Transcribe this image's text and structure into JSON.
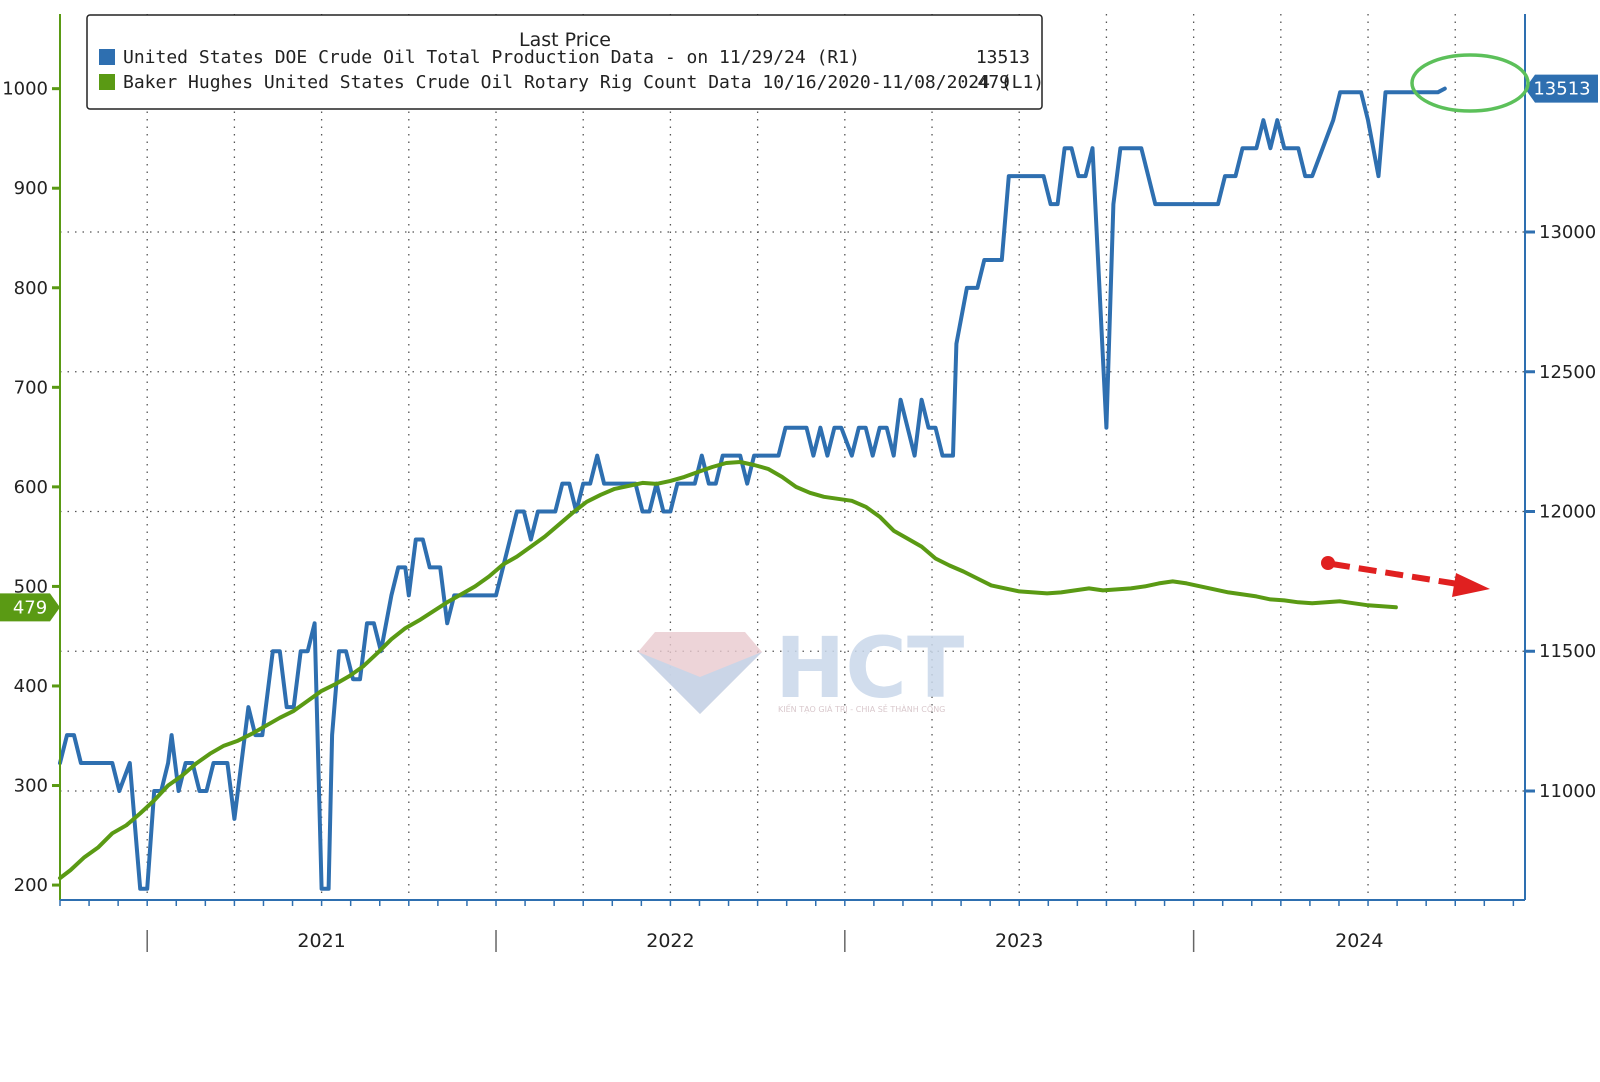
{
  "chart_data": {
    "type": "line",
    "legend": {
      "title": "Last Price",
      "position": "top-left",
      "entries": [
        {
          "name": "United States DOE Crude Oil Total Production Data -  on 11/29/24  (R1)",
          "last_value": "13513",
          "color": "#2e6fb0",
          "axis": "right"
        },
        {
          "name": "Baker Hughes United States Crude Oil Rotary Rig Count Data 10/16/2020-11/08/2024  (L1)",
          "last_value": "479",
          "color": "#5a9a14",
          "axis": "left"
        }
      ]
    },
    "x_axis": {
      "year_labels": [
        "2021",
        "2022",
        "2023",
        "2024"
      ],
      "range": [
        2020.75,
        2024.95
      ]
    },
    "left_axis": {
      "ticks": [
        "200",
        "300",
        "400",
        "500",
        "600",
        "700",
        "800",
        "900",
        "1000"
      ],
      "range": [
        185,
        1075
      ],
      "last_value_badge": "479"
    },
    "right_axis": {
      "ticks": [
        "11000",
        "11500",
        "12000",
        "12500",
        "13000"
      ],
      "range": [
        10610,
        13780
      ],
      "last_value_badge": "13513"
    },
    "series": [
      {
        "name": "United States DOE Crude Oil Total Production",
        "axis": "right",
        "color": "#2e6fb0",
        "points": [
          [
            2020.75,
            11100
          ],
          [
            2020.77,
            11200
          ],
          [
            2020.79,
            11200
          ],
          [
            2020.81,
            11100
          ],
          [
            2020.85,
            11100
          ],
          [
            2020.9,
            11100
          ],
          [
            2020.92,
            11000
          ],
          [
            2020.95,
            11100
          ],
          [
            2020.97,
            10800
          ],
          [
            2020.98,
            10650
          ],
          [
            2021.0,
            10650
          ],
          [
            2021.02,
            11000
          ],
          [
            2021.04,
            11000
          ],
          [
            2021.06,
            11100
          ],
          [
            2021.07,
            11200
          ],
          [
            2021.09,
            11000
          ],
          [
            2021.11,
            11100
          ],
          [
            2021.13,
            11100
          ],
          [
            2021.15,
            11000
          ],
          [
            2021.17,
            11000
          ],
          [
            2021.19,
            11100
          ],
          [
            2021.23,
            11100
          ],
          [
            2021.25,
            10900
          ],
          [
            2021.27,
            11100
          ],
          [
            2021.29,
            11300
          ],
          [
            2021.31,
            11200
          ],
          [
            2021.33,
            11200
          ],
          [
            2021.36,
            11500
          ],
          [
            2021.38,
            11500
          ],
          [
            2021.4,
            11300
          ],
          [
            2021.42,
            11300
          ],
          [
            2021.44,
            11500
          ],
          [
            2021.46,
            11500
          ],
          [
            2021.48,
            11600
          ],
          [
            2021.5,
            10650
          ],
          [
            2021.52,
            10650
          ],
          [
            2021.53,
            11200
          ],
          [
            2021.55,
            11500
          ],
          [
            2021.57,
            11500
          ],
          [
            2021.59,
            11400
          ],
          [
            2021.61,
            11400
          ],
          [
            2021.63,
            11600
          ],
          [
            2021.65,
            11600
          ],
          [
            2021.67,
            11500
          ],
          [
            2021.7,
            11700
          ],
          [
            2021.72,
            11800
          ],
          [
            2021.74,
            11800
          ],
          [
            2021.75,
            11700
          ],
          [
            2021.77,
            11900
          ],
          [
            2021.79,
            11900
          ],
          [
            2021.81,
            11800
          ],
          [
            2021.84,
            11800
          ],
          [
            2021.86,
            11600
          ],
          [
            2021.88,
            11700
          ],
          [
            2021.92,
            11700
          ],
          [
            2021.96,
            11700
          ],
          [
            2022.0,
            11700
          ],
          [
            2022.02,
            11800
          ],
          [
            2022.04,
            11900
          ],
          [
            2022.06,
            12000
          ],
          [
            2022.08,
            12000
          ],
          [
            2022.1,
            11900
          ],
          [
            2022.12,
            12000
          ],
          [
            2022.15,
            12000
          ],
          [
            2022.17,
            12000
          ],
          [
            2022.19,
            12100
          ],
          [
            2022.21,
            12100
          ],
          [
            2022.23,
            12000
          ],
          [
            2022.25,
            12100
          ],
          [
            2022.27,
            12100
          ],
          [
            2022.29,
            12200
          ],
          [
            2022.31,
            12100
          ],
          [
            2022.33,
            12100
          ],
          [
            2022.35,
            12100
          ],
          [
            2022.37,
            12100
          ],
          [
            2022.4,
            12100
          ],
          [
            2022.42,
            12000
          ],
          [
            2022.44,
            12000
          ],
          [
            2022.46,
            12100
          ],
          [
            2022.48,
            12000
          ],
          [
            2022.5,
            12000
          ],
          [
            2022.52,
            12100
          ],
          [
            2022.54,
            12100
          ],
          [
            2022.57,
            12100
          ],
          [
            2022.59,
            12200
          ],
          [
            2022.61,
            12100
          ],
          [
            2022.63,
            12100
          ],
          [
            2022.65,
            12200
          ],
          [
            2022.67,
            12200
          ],
          [
            2022.7,
            12200
          ],
          [
            2022.72,
            12100
          ],
          [
            2022.74,
            12200
          ],
          [
            2022.77,
            12200
          ],
          [
            2022.79,
            12200
          ],
          [
            2022.81,
            12200
          ],
          [
            2022.83,
            12300
          ],
          [
            2022.85,
            12300
          ],
          [
            2022.87,
            12300
          ],
          [
            2022.89,
            12300
          ],
          [
            2022.91,
            12200
          ],
          [
            2022.93,
            12300
          ],
          [
            2022.95,
            12200
          ],
          [
            2022.97,
            12300
          ],
          [
            2022.99,
            12300
          ],
          [
            2023.02,
            12200
          ],
          [
            2023.04,
            12300
          ],
          [
            2023.06,
            12300
          ],
          [
            2023.08,
            12200
          ],
          [
            2023.1,
            12300
          ],
          [
            2023.12,
            12300
          ],
          [
            2023.14,
            12200
          ],
          [
            2023.16,
            12400
          ],
          [
            2023.18,
            12300
          ],
          [
            2023.2,
            12200
          ],
          [
            2023.22,
            12400
          ],
          [
            2023.24,
            12300
          ],
          [
            2023.26,
            12300
          ],
          [
            2023.28,
            12200
          ],
          [
            2023.31,
            12200
          ],
          [
            2023.32,
            12600
          ],
          [
            2023.35,
            12800
          ],
          [
            2023.38,
            12800
          ],
          [
            2023.4,
            12900
          ],
          [
            2023.45,
            12900
          ],
          [
            2023.47,
            13200
          ],
          [
            2023.5,
            13200
          ],
          [
            2023.54,
            13200
          ],
          [
            2023.57,
            13200
          ],
          [
            2023.59,
            13100
          ],
          [
            2023.61,
            13100
          ],
          [
            2023.63,
            13300
          ],
          [
            2023.65,
            13300
          ],
          [
            2023.67,
            13200
          ],
          [
            2023.69,
            13200
          ],
          [
            2023.71,
            13300
          ],
          [
            2023.75,
            12300
          ],
          [
            2023.77,
            13100
          ],
          [
            2023.79,
            13300
          ],
          [
            2023.83,
            13300
          ],
          [
            2023.85,
            13300
          ],
          [
            2023.87,
            13200
          ],
          [
            2023.89,
            13100
          ],
          [
            2023.95,
            13100
          ],
          [
            2024.0,
            13100
          ],
          [
            2024.05,
            13100
          ],
          [
            2024.07,
            13100
          ],
          [
            2024.09,
            13200
          ],
          [
            2024.12,
            13200
          ],
          [
            2024.14,
            13300
          ],
          [
            2024.18,
            13300
          ],
          [
            2024.2,
            13400
          ],
          [
            2024.22,
            13300
          ],
          [
            2024.24,
            13400
          ],
          [
            2024.26,
            13300
          ],
          [
            2024.28,
            13300
          ],
          [
            2024.3,
            13300
          ],
          [
            2024.32,
            13200
          ],
          [
            2024.34,
            13200
          ],
          [
            2024.37,
            13300
          ],
          [
            2024.4,
            13400
          ],
          [
            2024.42,
            13500
          ],
          [
            2024.48,
            13500
          ],
          [
            2024.5,
            13400
          ],
          [
            2024.53,
            13200
          ],
          [
            2024.55,
            13500
          ],
          [
            2024.6,
            13500
          ],
          [
            2024.65,
            13500
          ],
          [
            2024.7,
            13500
          ],
          [
            2024.72,
            13513
          ]
        ]
      },
      {
        "name": "Baker Hughes United States Crude Oil Rotary Rig Count",
        "axis": "left",
        "color": "#5a9a14",
        "points": [
          [
            2020.75,
            207
          ],
          [
            2020.78,
            215
          ],
          [
            2020.82,
            228
          ],
          [
            2020.86,
            238
          ],
          [
            2020.9,
            252
          ],
          [
            2020.94,
            260
          ],
          [
            2020.98,
            272
          ],
          [
            2021.02,
            285
          ],
          [
            2021.06,
            300
          ],
          [
            2021.1,
            310
          ],
          [
            2021.14,
            322
          ],
          [
            2021.18,
            332
          ],
          [
            2021.22,
            340
          ],
          [
            2021.26,
            345
          ],
          [
            2021.3,
            352
          ],
          [
            2021.34,
            360
          ],
          [
            2021.38,
            368
          ],
          [
            2021.42,
            375
          ],
          [
            2021.46,
            385
          ],
          [
            2021.5,
            395
          ],
          [
            2021.54,
            402
          ],
          [
            2021.58,
            410
          ],
          [
            2021.62,
            420
          ],
          [
            2021.66,
            433
          ],
          [
            2021.7,
            447
          ],
          [
            2021.74,
            458
          ],
          [
            2021.78,
            466
          ],
          [
            2021.82,
            475
          ],
          [
            2021.86,
            484
          ],
          [
            2021.9,
            492
          ],
          [
            2021.94,
            500
          ],
          [
            2021.98,
            510
          ],
          [
            2022.02,
            522
          ],
          [
            2022.06,
            530
          ],
          [
            2022.1,
            540
          ],
          [
            2022.14,
            550
          ],
          [
            2022.18,
            562
          ],
          [
            2022.22,
            574
          ],
          [
            2022.26,
            585
          ],
          [
            2022.3,
            592
          ],
          [
            2022.34,
            598
          ],
          [
            2022.38,
            601
          ],
          [
            2022.42,
            604
          ],
          [
            2022.46,
            603
          ],
          [
            2022.5,
            606
          ],
          [
            2022.54,
            610
          ],
          [
            2022.58,
            615
          ],
          [
            2022.62,
            620
          ],
          [
            2022.66,
            624
          ],
          [
            2022.7,
            625
          ],
          [
            2022.74,
            622
          ],
          [
            2022.78,
            618
          ],
          [
            2022.82,
            610
          ],
          [
            2022.86,
            600
          ],
          [
            2022.9,
            594
          ],
          [
            2022.94,
            590
          ],
          [
            2022.98,
            588
          ],
          [
            2023.02,
            586
          ],
          [
            2023.06,
            580
          ],
          [
            2023.1,
            570
          ],
          [
            2023.14,
            556
          ],
          [
            2023.18,
            548
          ],
          [
            2023.22,
            540
          ],
          [
            2023.26,
            528
          ],
          [
            2023.3,
            521
          ],
          [
            2023.34,
            515
          ],
          [
            2023.38,
            508
          ],
          [
            2023.42,
            501
          ],
          [
            2023.46,
            498
          ],
          [
            2023.5,
            495
          ],
          [
            2023.54,
            494
          ],
          [
            2023.58,
            493
          ],
          [
            2023.62,
            494
          ],
          [
            2023.66,
            496
          ],
          [
            2023.7,
            498
          ],
          [
            2023.74,
            496
          ],
          [
            2023.78,
            497
          ],
          [
            2023.82,
            498
          ],
          [
            2023.86,
            500
          ],
          [
            2023.9,
            503
          ],
          [
            2023.94,
            505
          ],
          [
            2023.98,
            503
          ],
          [
            2024.02,
            500
          ],
          [
            2024.06,
            497
          ],
          [
            2024.1,
            494
          ],
          [
            2024.14,
            492
          ],
          [
            2024.18,
            490
          ],
          [
            2024.22,
            487
          ],
          [
            2024.26,
            486
          ],
          [
            2024.3,
            484
          ],
          [
            2024.34,
            483
          ],
          [
            2024.38,
            484
          ],
          [
            2024.42,
            485
          ],
          [
            2024.46,
            483
          ],
          [
            2024.5,
            481
          ],
          [
            2024.54,
            480
          ],
          [
            2024.58,
            479
          ]
        ]
      }
    ],
    "annotations": [
      {
        "type": "arrow",
        "color": "#e02020",
        "style": "dashed",
        "description": "downward trend in rig count"
      },
      {
        "type": "ellipse",
        "color": "#5cc05a",
        "description": "record production highlight"
      }
    ],
    "grid": true
  },
  "watermark": {
    "text": "HCT",
    "subtitle": "KIẾN TẠO GIÁ TRỊ - CHIA SẺ THÀNH CÔNG"
  }
}
